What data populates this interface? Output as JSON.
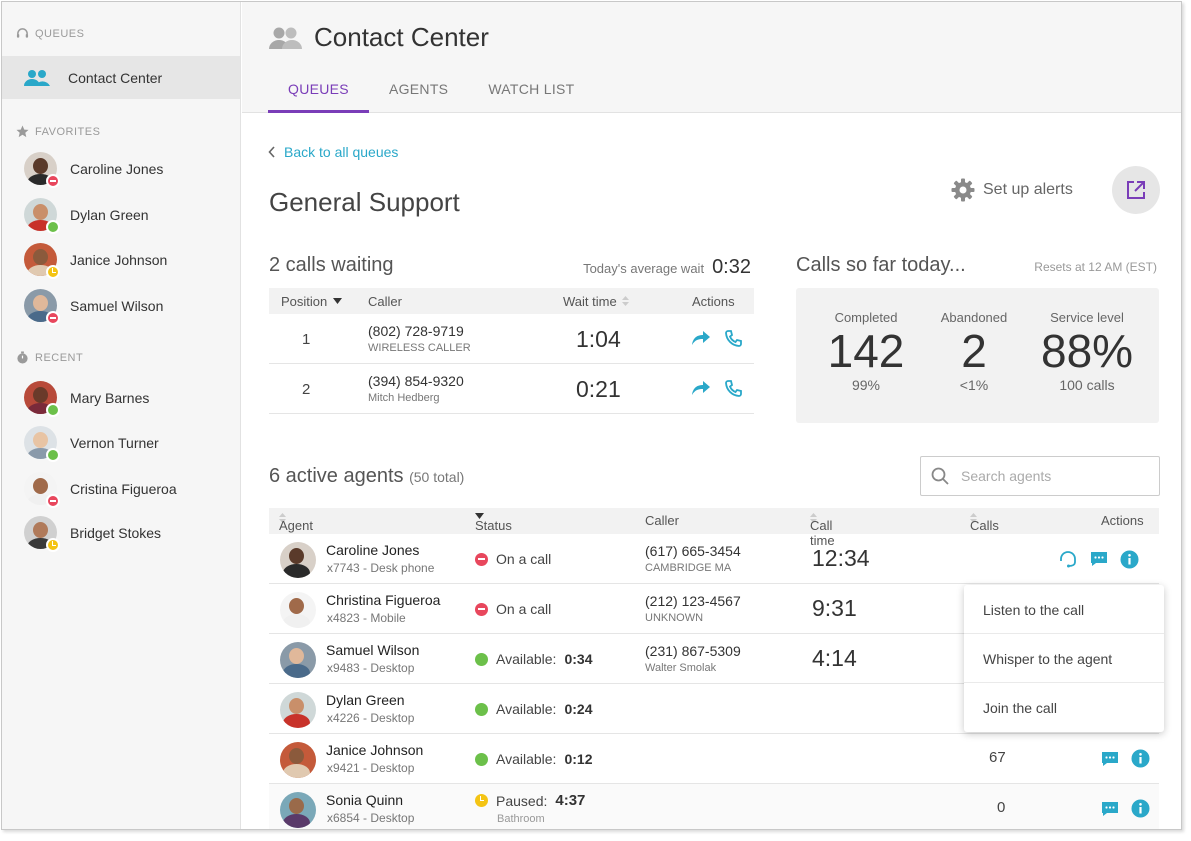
{
  "sidebar": {
    "queues_label": "QUEUES",
    "active_queue": "Contact Center",
    "favorites_label": "FAVORITES",
    "favorites": [
      {
        "name": "Caroline Jones",
        "status": "busy",
        "skin": "#5a3a2a",
        "shirt": "#2a2a2a"
      },
      {
        "name": "Dylan Green",
        "status": "available",
        "skin": "#c98f6a",
        "shirt": "#c8322a"
      },
      {
        "name": "Janice Johnson",
        "status": "away",
        "skin": "#8b5a3c",
        "shirt": "#e0c9b0"
      },
      {
        "name": "Samuel Wilson",
        "status": "busy",
        "skin": "#e0b89a",
        "shirt": "#4a6a8a"
      }
    ],
    "recent_label": "RECENT",
    "recent": [
      {
        "name": "Mary Barnes",
        "status": "available",
        "skin": "#6a3a2a",
        "shirt": "#7a2a3a"
      },
      {
        "name": "Vernon Turner",
        "status": "available",
        "skin": "#e8c4a4",
        "shirt": "#8a9aaa"
      },
      {
        "name": "Cristina Figueroa",
        "status": "busy",
        "skin": "#a06a4a",
        "shirt": "#f0f0f0"
      },
      {
        "name": "Bridget Stokes",
        "status": "away",
        "skin": "#b07a5a",
        "shirt": "#3a3a3a"
      }
    ]
  },
  "header": {
    "title": "Contact Center",
    "tabs": [
      "QUEUES",
      "AGENTS",
      "WATCH LIST"
    ]
  },
  "main": {
    "back_label": "Back to all queues",
    "queue_title": "General Support",
    "alerts_label": "Set up alerts"
  },
  "waiting": {
    "title": "2 calls waiting",
    "avg_label": "Today's average wait",
    "avg_value": "0:32",
    "columns": {
      "position": "Position",
      "caller": "Caller",
      "wait": "Wait time",
      "actions": "Actions"
    },
    "rows": [
      {
        "position": "1",
        "number": "(802) 728-9719",
        "caller": "WIRELESS CALLER",
        "wait": "1:04"
      },
      {
        "position": "2",
        "number": "(394) 854-9320",
        "caller": "Mitch Hedberg",
        "wait": "0:21"
      }
    ]
  },
  "today": {
    "title": "Calls so far today...",
    "resets": "Resets at 12 AM (EST)",
    "completed": {
      "label": "Completed",
      "value": "142",
      "sub": "99%"
    },
    "abandoned": {
      "label": "Abandoned",
      "value": "2",
      "sub": "<1%"
    },
    "service": {
      "label": "Service level",
      "value": "88%",
      "sub": "100 calls"
    }
  },
  "agents": {
    "title": "6 active agents",
    "total": "(50 total)",
    "search_placeholder": "Search agents",
    "columns": {
      "agent": "Agent",
      "status": "Status",
      "caller": "Caller",
      "call_time": "Call time",
      "calls": "Calls",
      "actions": "Actions"
    },
    "rows": [
      {
        "name": "Caroline Jones",
        "ext": "x7743 - Desk phone",
        "status": "busy",
        "status_label": "On a call",
        "status_value": "",
        "note": "",
        "number": "(617) 665-3454",
        "location": "CAMBRIDGE MA",
        "call_time": "12:34",
        "calls": "",
        "skin": "#5a3a2a",
        "shirt": "#2a2a2a"
      },
      {
        "name": "Christina Figueroa",
        "ext": "x4823 - Mobile",
        "status": "busy",
        "status_label": "On a call",
        "status_value": "",
        "note": "",
        "number": "(212) 123-4567",
        "location": "UNKNOWN",
        "call_time": "9:31",
        "calls": "",
        "skin": "#a06a4a",
        "shirt": "#f0f0f0"
      },
      {
        "name": "Samuel Wilson",
        "ext": "x9483 - Desktop",
        "status": "available",
        "status_label": "Available:",
        "status_value": "0:34",
        "note": "",
        "number": "(231) 867-5309",
        "location": "Walter Smolak",
        "call_time": "4:14",
        "calls": "",
        "skin": "#e0b89a",
        "shirt": "#4a6a8a"
      },
      {
        "name": "Dylan Green",
        "ext": "x4226 - Desktop",
        "status": "available",
        "status_label": "Available:",
        "status_value": "0:24",
        "note": "",
        "number": "",
        "location": "",
        "call_time": "",
        "calls": "",
        "skin": "#c98f6a",
        "shirt": "#c8322a"
      },
      {
        "name": "Janice Johnson",
        "ext": "x9421 - Desktop",
        "status": "available",
        "status_label": "Available:",
        "status_value": "0:12",
        "note": "",
        "number": "",
        "location": "",
        "call_time": "",
        "calls": "67",
        "skin": "#8b5a3c",
        "shirt": "#e0c9b0"
      },
      {
        "name": "Sonia Quinn",
        "ext": "x6854 - Desktop",
        "status": "away",
        "status_label": "Paused:",
        "status_value": "4:37",
        "note": "Bathroom",
        "number": "",
        "location": "",
        "call_time": "",
        "calls": "0",
        "skin": "#9a6a4a",
        "shirt": "#5a3a6a"
      }
    ]
  },
  "call_menu": {
    "items": [
      "Listen to the call",
      "Whisper to the agent",
      "Join the call"
    ]
  },
  "colors": {
    "accent": "#7a3db8",
    "link": "#2aa8c9",
    "busy": "#e8475d",
    "available": "#6cc04a",
    "away": "#f4c414"
  }
}
